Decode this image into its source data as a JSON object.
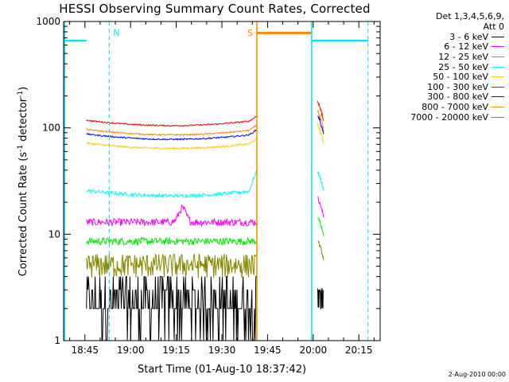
{
  "chart_data": {
    "type": "line",
    "title": "HESSI Observing Summary Count Rates, Corrected",
    "xlabel": "Start Time (01-Aug-10 18:37:42)",
    "ylabel_main": "Corrected Count Rate (s",
    "ylabel_sup1": "-1",
    "ylabel_mid": " detector",
    "ylabel_sup2": "-1",
    "ylabel_end": ")",
    "x_tick_labels": [
      "18:45",
      "19:00",
      "19:15",
      "19:30",
      "19:45",
      "20:00",
      "20:15"
    ],
    "x_ticks_min": [
      45,
      60,
      75,
      90,
      105,
      120,
      135
    ],
    "xlim_min": [
      38,
      142
    ],
    "y_tick_labels": [
      "1",
      "10",
      "100",
      "1000"
    ],
    "y_ticks": [
      1,
      10,
      100,
      1000
    ],
    "ylim": [
      1,
      1000
    ],
    "yscale": "log",
    "legend_header": [
      "Det 1,3,4,5,6,9,",
      "Att 0"
    ],
    "series": [
      {
        "name": "3 - 6 keV",
        "color": "#000000",
        "base": 2.3,
        "shape": "noise",
        "jitter": 0.35
      },
      {
        "name": "6 - 12 keV",
        "color": "#ff00ff",
        "base": 13,
        "shape": "bump",
        "jitter": 0.08
      },
      {
        "name": "12 - 25 keV",
        "color": "#00ee00",
        "base": 8.6,
        "shape": "flat",
        "jitter": 0.08
      },
      {
        "name": "25 - 50 keV",
        "color": "#00ffff",
        "base": 23,
        "shape": "dip",
        "jitter": 0.04
      },
      {
        "name": "50 - 100 keV",
        "color": "#ffcc00",
        "base": 64,
        "shape": "dip",
        "jitter": 0.02
      },
      {
        "name": "100 - 300 keV",
        "color": "#ff0000",
        "base": 105,
        "shape": "dip",
        "jitter": 0.015
      },
      {
        "name": "300 - 800 keV",
        "color": "#0000ff",
        "base": 78,
        "shape": "dip",
        "jitter": 0.015
      },
      {
        "name": "800 - 7000 keV",
        "color": "#ff8800",
        "base": 86,
        "shape": "dip",
        "jitter": 0.015
      },
      {
        "name": "7000 - 20000 keV",
        "color": "#888800",
        "base": 5.2,
        "shape": "noise",
        "jitter": 0.12
      }
    ],
    "interval_start_min": 45.5,
    "interval_end_min": 101.5,
    "late_interval_min": [
      121.5,
      123.5
    ],
    "saa_level": 660,
    "night_level": 780,
    "markers": [
      {
        "label": "N",
        "x_min": 53,
        "color": "#00e5ff"
      },
      {
        "label": "S",
        "x_min": 101.5,
        "color": "#ff8800"
      }
    ],
    "day_night_boundaries": [
      {
        "x_min": 53,
        "style": "dashed",
        "color": "#00e5ff"
      },
      {
        "x_min": 101.5,
        "style": "solid",
        "color": "#ff8800"
      },
      {
        "x_min": 119.5,
        "style": "solid",
        "color": "#00e5ff"
      },
      {
        "x_min": 138,
        "style": "dashed",
        "color": "#00e5ff"
      }
    ]
  },
  "footer": {
    "timestamp": "2-Aug-2010 00:00"
  }
}
